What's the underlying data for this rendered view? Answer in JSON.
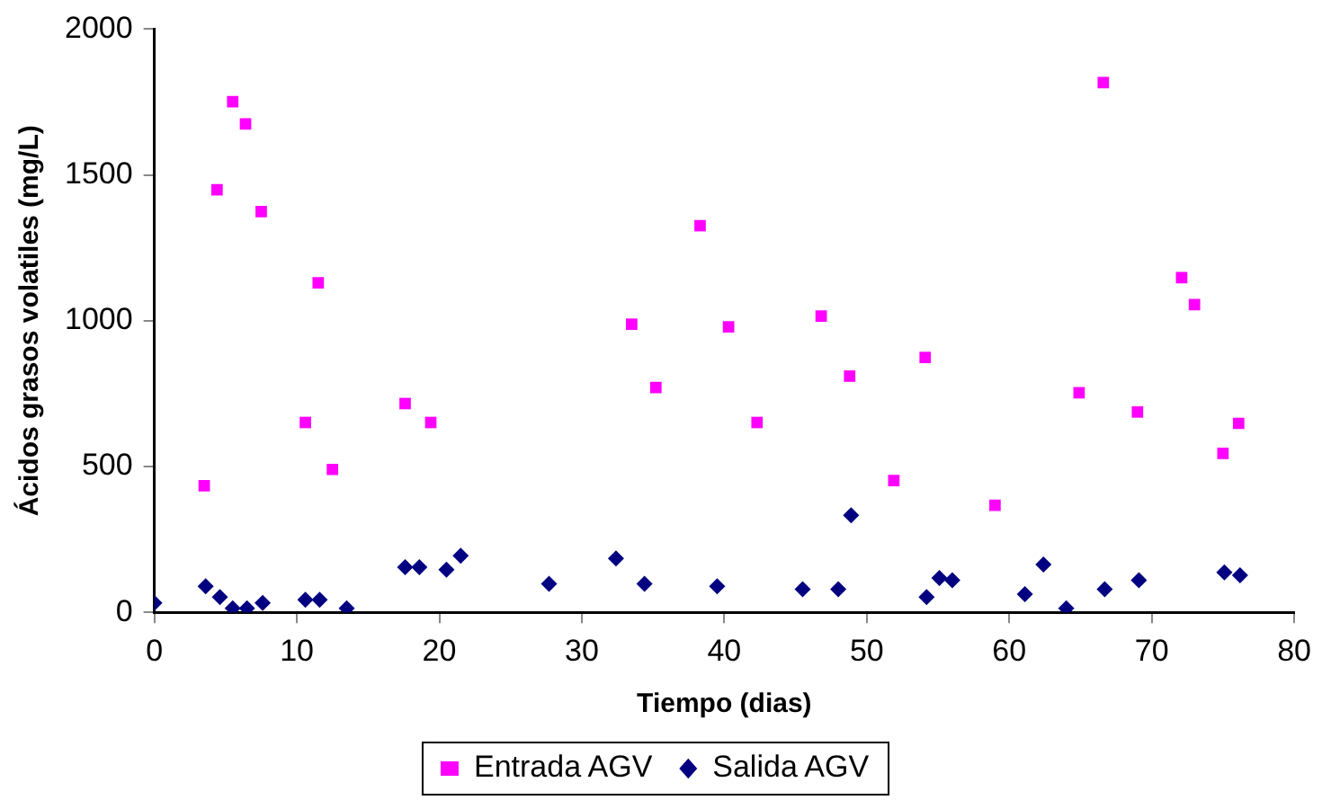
{
  "chart_data": {
    "type": "scatter",
    "xlabel": "Tiempo (dias)",
    "ylabel": "Ácidos grasos volatiles (mg/L)",
    "xlim": [
      0,
      80
    ],
    "xticks": [
      0,
      10,
      20,
      30,
      40,
      50,
      60,
      70,
      80
    ],
    "ylim": [
      0,
      2000
    ],
    "yticks": [
      0,
      500,
      1000,
      1500,
      2000
    ],
    "grid": false,
    "legend": "bottom",
    "series": [
      {
        "name": "Entrada AGV",
        "color": "#ff00ff",
        "marker": "square",
        "x": [
          3.5,
          4.4,
          5.5,
          6.4,
          7.5,
          10.6,
          11.5,
          12.5,
          17.6,
          19.4,
          33.5,
          35.2,
          38.3,
          40.3,
          42.3,
          46.8,
          48.8,
          51.9,
          54.1,
          59.0,
          64.9,
          66.6,
          69.0,
          72.1,
          73.0,
          75.0,
          76.1
        ],
        "values": [
          434,
          1449,
          1751,
          1675,
          1374,
          651,
          1130,
          490,
          716,
          651,
          988,
          771,
          1326,
          979,
          651,
          1016,
          810,
          452,
          874,
          367,
          753,
          1817,
          687,
          1148,
          1055,
          545,
          648
        ]
      },
      {
        "name": "Salida AGV",
        "color": "#000080",
        "marker": "diamond",
        "x": [
          0,
          3.6,
          4.6,
          5.5,
          6.5,
          7.6,
          10.6,
          11.6,
          13.5,
          17.6,
          18.6,
          20.5,
          21.5,
          27.7,
          32.4,
          34.4,
          39.5,
          45.5,
          48.0,
          48.9,
          54.2,
          55.1,
          56.0,
          61.1,
          62.4,
          64.0,
          66.7,
          69.1,
          75.1,
          76.2
        ],
        "values": [
          32,
          89,
          52,
          14,
          14,
          32,
          43,
          43,
          14,
          155,
          155,
          146,
          194,
          98,
          185,
          98,
          89,
          79,
          79,
          333,
          52,
          118,
          110,
          62,
          164,
          14,
          79,
          110,
          137,
          127
        ]
      }
    ]
  }
}
